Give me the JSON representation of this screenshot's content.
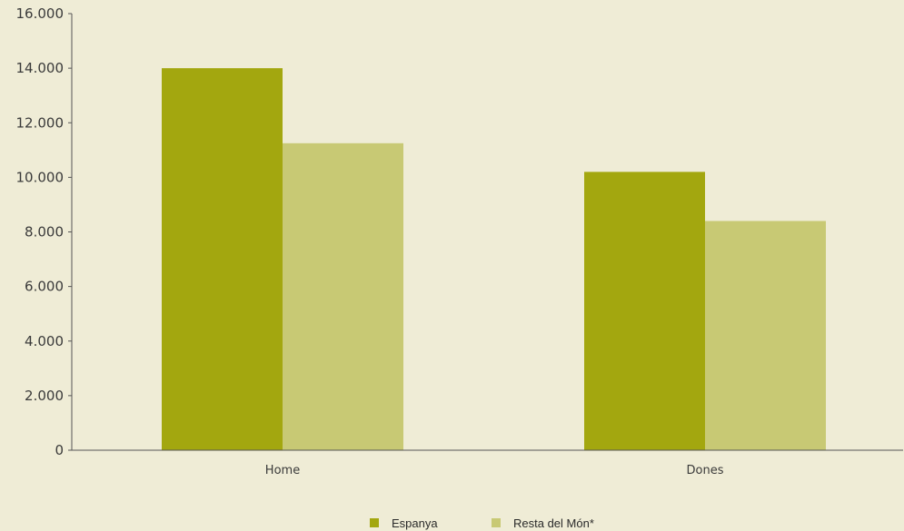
{
  "chart_data": {
    "type": "bar",
    "categories": [
      "Home",
      "Dones"
    ],
    "series": [
      {
        "name": "Espanya",
        "values": [
          14000,
          10200
        ],
        "color": "#a3a70f"
      },
      {
        "name": "Resta del Món*",
        "values": [
          11250,
          8400
        ],
        "color": "#c8c974"
      }
    ],
    "ylim": [
      0,
      16000
    ],
    "yticks": [
      0,
      2000,
      4000,
      6000,
      8000,
      10000,
      12000,
      14000,
      16000
    ],
    "ytick_labels": [
      "0",
      "2.000",
      "4.000",
      "6.000",
      "8.000",
      "10.000",
      "12.000",
      "14.000",
      "16.000"
    ],
    "title": "",
    "xlabel": "",
    "ylabel": "",
    "grid": false,
    "legend_position": "bottom-center"
  },
  "colors": {
    "background": "#efecd6",
    "axis": "#555555",
    "text": "#3a3a3a"
  }
}
